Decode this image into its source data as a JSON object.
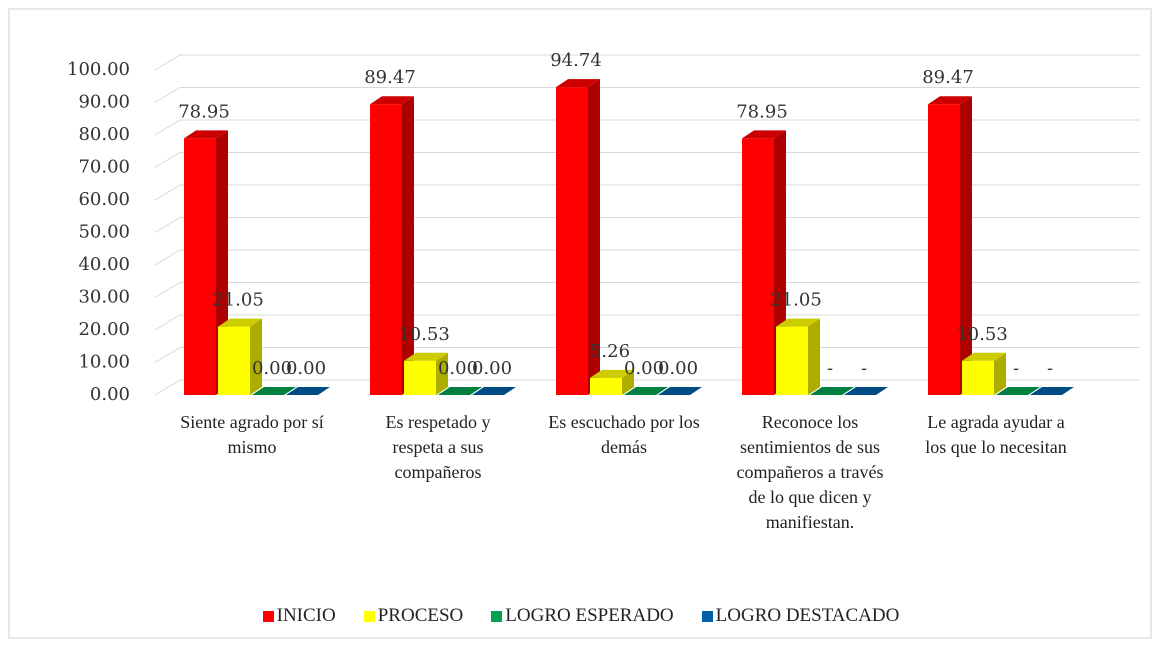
{
  "chart_data": {
    "type": "bar3d",
    "categories": [
      "Siente agrado por sí mismo",
      "Es respetado y respeta a sus compañeros",
      "Es escuchado por los demás",
      "Reconoce los sentimientos de sus compañeros a través de lo que dicen y manifiestan.",
      "Le agrada ayudar a los que lo necesitan"
    ],
    "series": [
      {
        "name": "INICIO",
        "color": "#ff0000",
        "values": [
          78.95,
          89.47,
          94.74,
          78.95,
          89.47
        ]
      },
      {
        "name": "PROCESO",
        "color": "#ffff00",
        "values": [
          21.05,
          10.53,
          5.26,
          21.05,
          10.53
        ]
      },
      {
        "name": "LOGRO ESPERADO",
        "color": "#00a050",
        "values": [
          0,
          0,
          0,
          0,
          0
        ],
        "value_labels": [
          "0.00",
          "0.00",
          "0.00",
          "-",
          "-"
        ]
      },
      {
        "name": "LOGRO DESTACADO",
        "color": "#0060a8",
        "values": [
          0,
          0,
          0,
          0,
          0
        ],
        "value_labels": [
          "0.00",
          "0.00",
          "0.00",
          "-",
          "-"
        ]
      }
    ],
    "ylim": [
      0,
      100
    ],
    "yticks": [
      {
        "value": 0,
        "label": "0.00"
      },
      {
        "value": 10,
        "label": "10.00"
      },
      {
        "value": 20,
        "label": "20.00"
      },
      {
        "value": 30,
        "label": "30.00"
      },
      {
        "value": 40,
        "label": "40.00"
      },
      {
        "value": 50,
        "label": "50.00"
      },
      {
        "value": 60,
        "label": "60.00"
      },
      {
        "value": 70,
        "label": "70.00"
      },
      {
        "value": 80,
        "label": "80.00"
      },
      {
        "value": 90,
        "label": "90.00"
      },
      {
        "value": 100,
        "label": "100.00"
      }
    ],
    "grid": true,
    "legend": "bottom"
  }
}
